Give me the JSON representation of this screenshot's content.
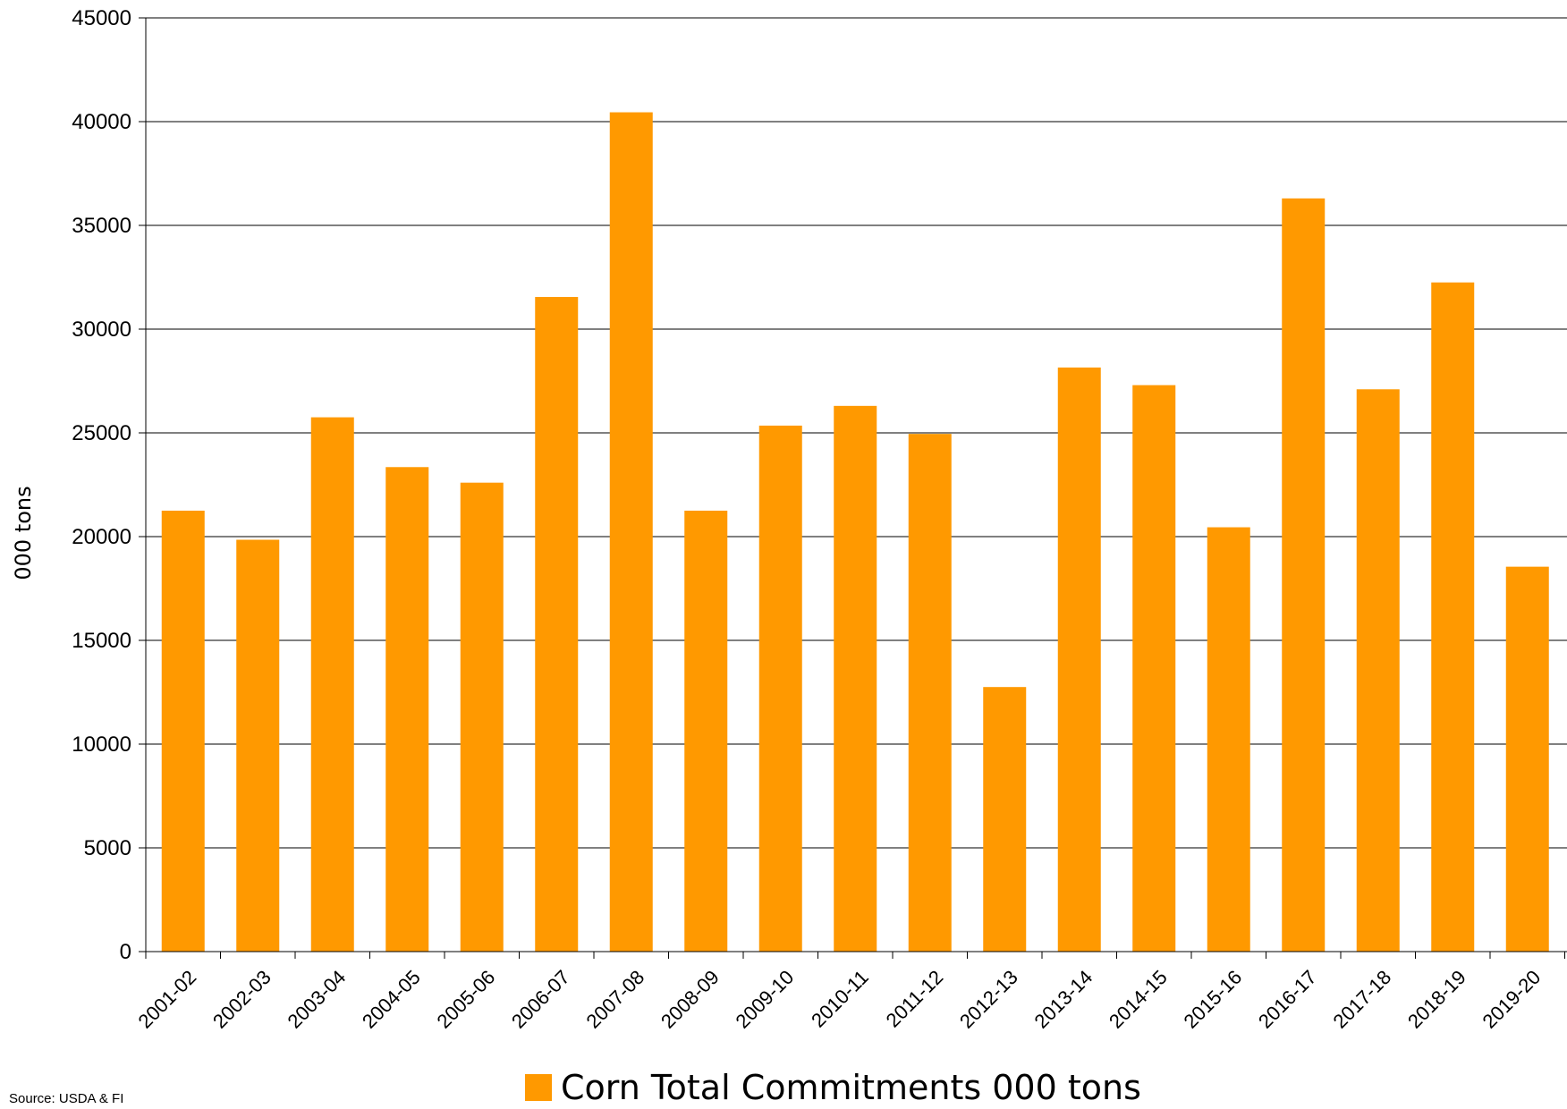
{
  "chart_data": {
    "type": "bar",
    "title": "",
    "xlabel": "",
    "ylabel": "000 tons",
    "ylim": [
      0,
      45000
    ],
    "yticks": [
      0,
      5000,
      10000,
      15000,
      20000,
      25000,
      30000,
      35000,
      40000,
      45000
    ],
    "grid": true,
    "legend_position": "bottom",
    "categories": [
      "2001-02",
      "2002-03",
      "2003-04",
      "2004-05",
      "2005-06",
      "2006-07",
      "2007-08",
      "2008-09",
      "2009-10",
      "2010-11",
      "2011-12",
      "2012-13",
      "2013-14",
      "2014-15",
      "2015-16",
      "2016-17",
      "2017-18",
      "2018-19",
      "2019-20"
    ],
    "series": [
      {
        "name": "Corn Total Commitments 000 tons",
        "color": "#FF9900",
        "values": [
          21250,
          19850,
          25750,
          23350,
          22600,
          31550,
          40450,
          21250,
          25350,
          26300,
          24950,
          12750,
          28150,
          27300,
          20450,
          36300,
          27100,
          32250,
          18550
        ]
      }
    ]
  },
  "source": "Source: USDA & FI"
}
